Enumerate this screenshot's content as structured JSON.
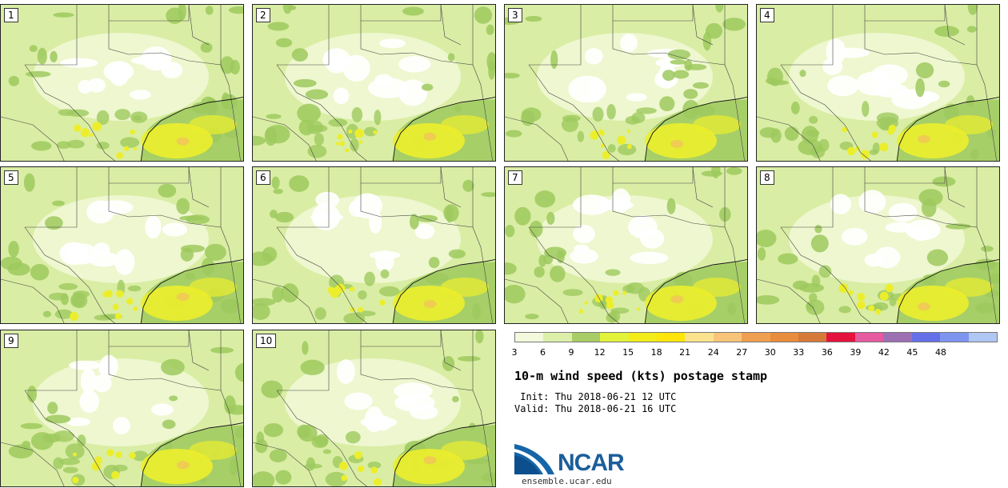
{
  "panels": [
    "1",
    "2",
    "3",
    "4",
    "5",
    "6",
    "7",
    "8",
    "9",
    "10"
  ],
  "colorbar": {
    "ticks": [
      "3",
      "6",
      "9",
      "12",
      "15",
      "18",
      "21",
      "24",
      "27",
      "30",
      "33",
      "36",
      "39",
      "42",
      "45",
      "48"
    ],
    "colors": [
      "#f3f9dc",
      "#dcefa9",
      "#a8cd66",
      "#e3f23a",
      "#f2ec1a",
      "#ffe50a",
      "#fbe38d",
      "#f7c47a",
      "#ef9f4f",
      "#e88d3c",
      "#d67a3a",
      "#e4123c",
      "#e65aa0",
      "#9d70b4",
      "#6570e8",
      "#7d95f0",
      "#b0c6f3"
    ]
  },
  "title": "10-m wind speed (kts) postage stamp",
  "init": " Init: Thu 2018-06-21 12 UTC",
  "valid": "Valid: Thu 2018-06-21 16 UTC",
  "logo_text": "NCAR",
  "site": "ensemble.ucar.edu",
  "map_colors": {
    "land_light": "#eef7cf",
    "land_mid": "#d9eda4",
    "green": "#9ec95e",
    "white": "#ffffff",
    "yellow": "#ecee2c",
    "orange": "#f2c45a",
    "border": "#444444"
  }
}
